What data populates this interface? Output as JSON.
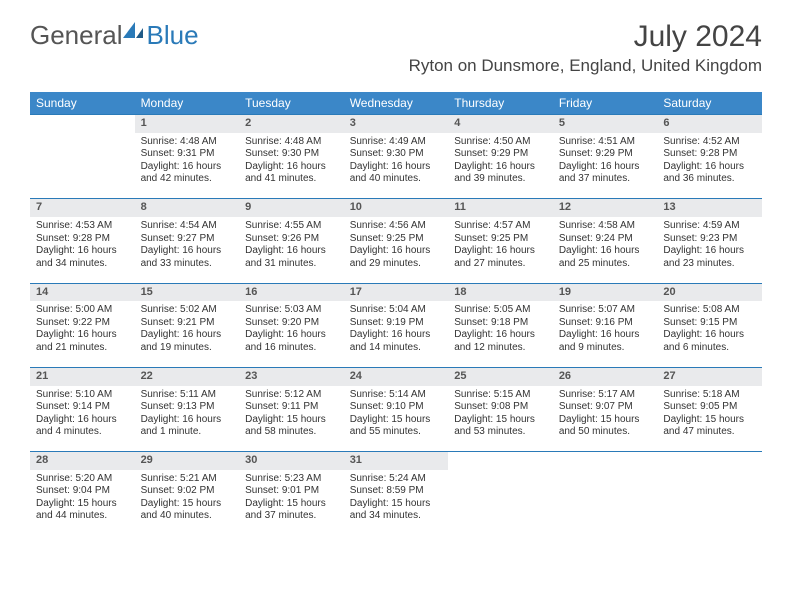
{
  "brand": {
    "name1": "General",
    "name2": "Blue"
  },
  "title": "July 2024",
  "location": "Ryton on Dunsmore, England, United Kingdom",
  "colors": {
    "header_bg": "#3b87c8",
    "daynum_bg": "#e9eaec",
    "row_border": "#2a7ab8",
    "text": "#333333"
  },
  "weekdays": [
    "Sunday",
    "Monday",
    "Tuesday",
    "Wednesday",
    "Thursday",
    "Friday",
    "Saturday"
  ],
  "weeks": [
    [
      null,
      {
        "n": "1",
        "sr": "4:48 AM",
        "ss": "9:31 PM",
        "dl": "16 hours and 42 minutes."
      },
      {
        "n": "2",
        "sr": "4:48 AM",
        "ss": "9:30 PM",
        "dl": "16 hours and 41 minutes."
      },
      {
        "n": "3",
        "sr": "4:49 AM",
        "ss": "9:30 PM",
        "dl": "16 hours and 40 minutes."
      },
      {
        "n": "4",
        "sr": "4:50 AM",
        "ss": "9:29 PM",
        "dl": "16 hours and 39 minutes."
      },
      {
        "n": "5",
        "sr": "4:51 AM",
        "ss": "9:29 PM",
        "dl": "16 hours and 37 minutes."
      },
      {
        "n": "6",
        "sr": "4:52 AM",
        "ss": "9:28 PM",
        "dl": "16 hours and 36 minutes."
      }
    ],
    [
      {
        "n": "7",
        "sr": "4:53 AM",
        "ss": "9:28 PM",
        "dl": "16 hours and 34 minutes."
      },
      {
        "n": "8",
        "sr": "4:54 AM",
        "ss": "9:27 PM",
        "dl": "16 hours and 33 minutes."
      },
      {
        "n": "9",
        "sr": "4:55 AM",
        "ss": "9:26 PM",
        "dl": "16 hours and 31 minutes."
      },
      {
        "n": "10",
        "sr": "4:56 AM",
        "ss": "9:25 PM",
        "dl": "16 hours and 29 minutes."
      },
      {
        "n": "11",
        "sr": "4:57 AM",
        "ss": "9:25 PM",
        "dl": "16 hours and 27 minutes."
      },
      {
        "n": "12",
        "sr": "4:58 AM",
        "ss": "9:24 PM",
        "dl": "16 hours and 25 minutes."
      },
      {
        "n": "13",
        "sr": "4:59 AM",
        "ss": "9:23 PM",
        "dl": "16 hours and 23 minutes."
      }
    ],
    [
      {
        "n": "14",
        "sr": "5:00 AM",
        "ss": "9:22 PM",
        "dl": "16 hours and 21 minutes."
      },
      {
        "n": "15",
        "sr": "5:02 AM",
        "ss": "9:21 PM",
        "dl": "16 hours and 19 minutes."
      },
      {
        "n": "16",
        "sr": "5:03 AM",
        "ss": "9:20 PM",
        "dl": "16 hours and 16 minutes."
      },
      {
        "n": "17",
        "sr": "5:04 AM",
        "ss": "9:19 PM",
        "dl": "16 hours and 14 minutes."
      },
      {
        "n": "18",
        "sr": "5:05 AM",
        "ss": "9:18 PM",
        "dl": "16 hours and 12 minutes."
      },
      {
        "n": "19",
        "sr": "5:07 AM",
        "ss": "9:16 PM",
        "dl": "16 hours and 9 minutes."
      },
      {
        "n": "20",
        "sr": "5:08 AM",
        "ss": "9:15 PM",
        "dl": "16 hours and 6 minutes."
      }
    ],
    [
      {
        "n": "21",
        "sr": "5:10 AM",
        "ss": "9:14 PM",
        "dl": "16 hours and 4 minutes."
      },
      {
        "n": "22",
        "sr": "5:11 AM",
        "ss": "9:13 PM",
        "dl": "16 hours and 1 minute."
      },
      {
        "n": "23",
        "sr": "5:12 AM",
        "ss": "9:11 PM",
        "dl": "15 hours and 58 minutes."
      },
      {
        "n": "24",
        "sr": "5:14 AM",
        "ss": "9:10 PM",
        "dl": "15 hours and 55 minutes."
      },
      {
        "n": "25",
        "sr": "5:15 AM",
        "ss": "9:08 PM",
        "dl": "15 hours and 53 minutes."
      },
      {
        "n": "26",
        "sr": "5:17 AM",
        "ss": "9:07 PM",
        "dl": "15 hours and 50 minutes."
      },
      {
        "n": "27",
        "sr": "5:18 AM",
        "ss": "9:05 PM",
        "dl": "15 hours and 47 minutes."
      }
    ],
    [
      {
        "n": "28",
        "sr": "5:20 AM",
        "ss": "9:04 PM",
        "dl": "15 hours and 44 minutes."
      },
      {
        "n": "29",
        "sr": "5:21 AM",
        "ss": "9:02 PM",
        "dl": "15 hours and 40 minutes."
      },
      {
        "n": "30",
        "sr": "5:23 AM",
        "ss": "9:01 PM",
        "dl": "15 hours and 37 minutes."
      },
      {
        "n": "31",
        "sr": "5:24 AM",
        "ss": "8:59 PM",
        "dl": "15 hours and 34 minutes."
      },
      null,
      null,
      null
    ]
  ]
}
